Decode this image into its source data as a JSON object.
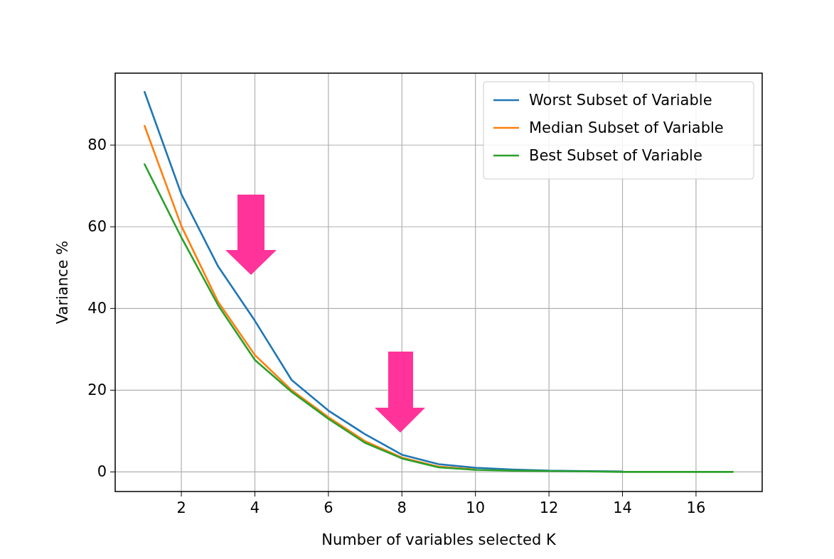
{
  "chart_data": {
    "type": "line",
    "xlabel": "Number of variables selected K",
    "ylabel": "Variance %",
    "x": [
      1,
      2,
      3,
      4,
      5,
      6,
      7,
      8,
      9,
      10,
      11,
      12,
      13,
      14,
      15,
      16,
      17
    ],
    "series": [
      {
        "name": "Worst Subset of Variable",
        "color": "#1f77b4",
        "values": [
          93,
          68,
          50.3,
          37,
          22.5,
          15,
          9.2,
          4.2,
          1.9,
          1,
          0.6,
          0.3,
          0.2,
          0.1,
          null,
          null,
          null
        ]
      },
      {
        "name": "Median Subset of Variable",
        "color": "#ff7f0e",
        "values": [
          84.7,
          60.2,
          41.6,
          28.6,
          20,
          13.4,
          7.5,
          3.5,
          1.3,
          0.6,
          null,
          null,
          null,
          null,
          null,
          null,
          null
        ]
      },
      {
        "name": "Best Subset of Variable",
        "color": "#2ca02c",
        "values": [
          75.3,
          57.4,
          40.8,
          27.4,
          19.6,
          13,
          7.1,
          3.3,
          1.1,
          0.5,
          0.3,
          0.2,
          0.1,
          0,
          0,
          0,
          0
        ]
      }
    ],
    "xlim": [
      0.2,
      17.8
    ],
    "ylim": [
      -4.8,
      97.6
    ],
    "xticks": [
      2,
      4,
      6,
      8,
      10,
      12,
      14,
      16
    ],
    "yticks": [
      0,
      20,
      40,
      60,
      80
    ],
    "grid": true,
    "legend": "top right",
    "line_style": "solid",
    "marker": "none"
  }
}
